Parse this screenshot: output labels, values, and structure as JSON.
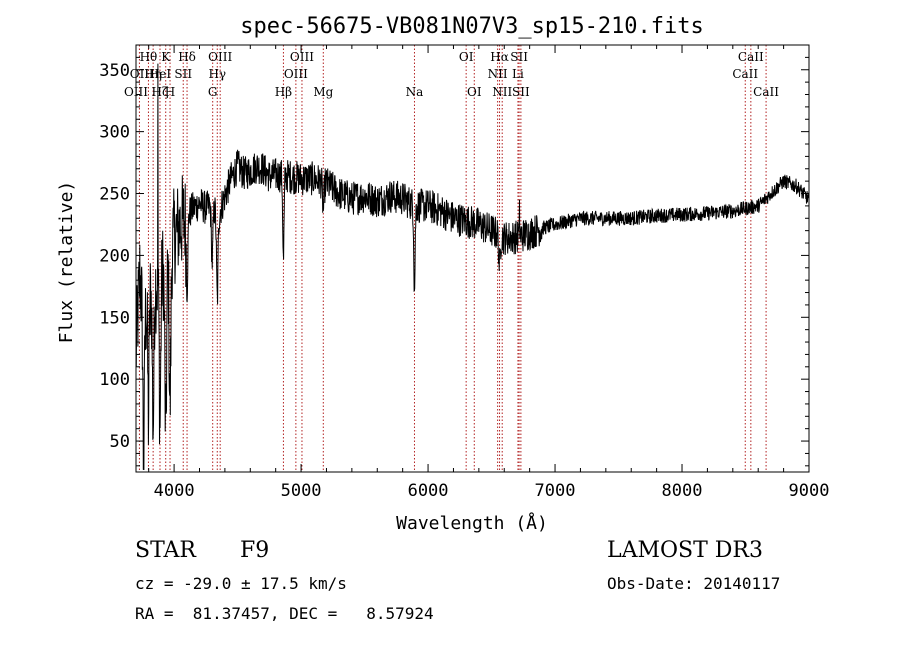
{
  "chart_data": {
    "type": "line",
    "title": "spec-56675-VB081N07V3_sp15-210.fits",
    "xlabel": "Wavelength (Å)",
    "ylabel": "Flux (relative)",
    "xlim": [
      3700,
      9000
    ],
    "ylim": [
      25,
      370
    ],
    "xticks": [
      4000,
      5000,
      6000,
      7000,
      8000,
      9000
    ],
    "yticks": [
      50,
      100,
      150,
      200,
      250,
      300,
      350
    ],
    "line_color": "#000000",
    "marker_color": "#b22222",
    "continuum": [
      [
        3700,
        120
      ],
      [
        3730,
        185
      ],
      [
        3760,
        140
      ],
      [
        3800,
        165
      ],
      [
        3850,
        175
      ],
      [
        3900,
        185
      ],
      [
        3950,
        200
      ],
      [
        4000,
        215
      ],
      [
        4050,
        225
      ],
      [
        4100,
        232
      ],
      [
        4150,
        238
      ],
      [
        4200,
        242
      ],
      [
        4250,
        238
      ],
      [
        4300,
        240
      ],
      [
        4350,
        232
      ],
      [
        4400,
        248
      ],
      [
        4450,
        262
      ],
      [
        4500,
        272
      ],
      [
        4550,
        266
      ],
      [
        4600,
        268
      ],
      [
        4650,
        272
      ],
      [
        4700,
        270
      ],
      [
        4750,
        264
      ],
      [
        4800,
        265
      ],
      [
        4900,
        264
      ],
      [
        5000,
        262
      ],
      [
        5100,
        262
      ],
      [
        5200,
        258
      ],
      [
        5300,
        250
      ],
      [
        5400,
        246
      ],
      [
        5500,
        248
      ],
      [
        5600,
        244
      ],
      [
        5700,
        248
      ],
      [
        5800,
        246
      ],
      [
        5900,
        240
      ],
      [
        6000,
        240
      ],
      [
        6100,
        236
      ],
      [
        6200,
        230
      ],
      [
        6300,
        228
      ],
      [
        6400,
        225
      ],
      [
        6500,
        220
      ],
      [
        6600,
        214
      ],
      [
        6700,
        215
      ],
      [
        6800,
        218
      ],
      [
        6900,
        222
      ],
      [
        7000,
        225
      ],
      [
        7200,
        230
      ],
      [
        7400,
        230
      ],
      [
        7600,
        230
      ],
      [
        7800,
        232
      ],
      [
        8000,
        233
      ],
      [
        8200,
        234
      ],
      [
        8400,
        236
      ],
      [
        8600,
        240
      ],
      [
        8700,
        250
      ],
      [
        8800,
        260
      ],
      [
        8900,
        256
      ],
      [
        9000,
        245
      ]
    ],
    "absorption_features": [
      {
        "wl": 3760,
        "depth": 120,
        "width": 5
      },
      {
        "wl": 3798,
        "depth": 95,
        "width": 5
      },
      {
        "wl": 3835,
        "depth": 110,
        "width": 6
      },
      {
        "wl": 3889,
        "depth": 120,
        "width": 6
      },
      {
        "wl": 3934,
        "depth": 140,
        "width": 7
      },
      {
        "wl": 3968,
        "depth": 125,
        "width": 7
      },
      {
        "wl": 4102,
        "depth": 60,
        "width": 6
      },
      {
        "wl": 4300,
        "depth": 45,
        "width": 6
      },
      {
        "wl": 4340,
        "depth": 70,
        "width": 6
      },
      {
        "wl": 4861,
        "depth": 70,
        "width": 5
      },
      {
        "wl": 5175,
        "depth": 22,
        "width": 6
      },
      {
        "wl": 5893,
        "depth": 70,
        "width": 5
      },
      {
        "wl": 6563,
        "depth": 25,
        "width": 6
      }
    ],
    "emission_spikes": [
      {
        "wl": 3872,
        "height": 355
      },
      {
        "wl": 6720,
        "height": 245
      }
    ],
    "noise": {
      "blue_amp": 40,
      "mid_amp": 14,
      "red_amp": 6
    },
    "lines_row1": [
      {
        "label": "Hθ",
        "wl": 3798
      },
      {
        "label": "K",
        "wl": 3934
      },
      {
        "label": "Hδ",
        "wl": 4102
      },
      {
        "label": "OIII",
        "wl": 4363
      },
      {
        "label": "OIII",
        "wl": 5007
      },
      {
        "label": "OI",
        "wl": 6300
      },
      {
        "label": "Hα",
        "wl": 6563
      },
      {
        "label": "SII",
        "wl": 6717
      },
      {
        "label": "CaII",
        "wl": 8542
      }
    ],
    "lines_row2": [
      {
        "label": "OII",
        "wl": 3727
      },
      {
        "label": "Hη",
        "wl": 3835
      },
      {
        "label": "HeI",
        "wl": 3889
      },
      {
        "label": "SII",
        "wl": 4072
      },
      {
        "label": "Hγ",
        "wl": 4340
      },
      {
        "label": "OIII",
        "wl": 4959
      },
      {
        "label": "NII",
        "wl": 6548
      },
      {
        "label": "Li",
        "wl": 6708
      },
      {
        "label": "CaII",
        "wl": 8498
      }
    ],
    "lines_row3": [
      {
        "label": "OIII",
        "wl": 3700
      },
      {
        "label": "Hζ",
        "wl": 3889
      },
      {
        "label": "H",
        "wl": 3968
      },
      {
        "label": "G",
        "wl": 4304
      },
      {
        "label": "Hβ",
        "wl": 4861
      },
      {
        "label": "Mg",
        "wl": 5175
      },
      {
        "label": "Na",
        "wl": 5893
      },
      {
        "label": "OI",
        "wl": 6364
      },
      {
        "label": "NII",
        "wl": 6584
      },
      {
        "label": "SII",
        "wl": 6731
      },
      {
        "label": "CaII",
        "wl": 8662
      }
    ]
  },
  "info": {
    "object_class": "STAR",
    "subclass": "F9",
    "survey": "LAMOST DR3",
    "cz": "cz = -29.0 ± 17.5 km/s",
    "obs_date": "Obs-Date: 20140117",
    "coords": "RA =  81.37457, DEC =   8.57924"
  }
}
